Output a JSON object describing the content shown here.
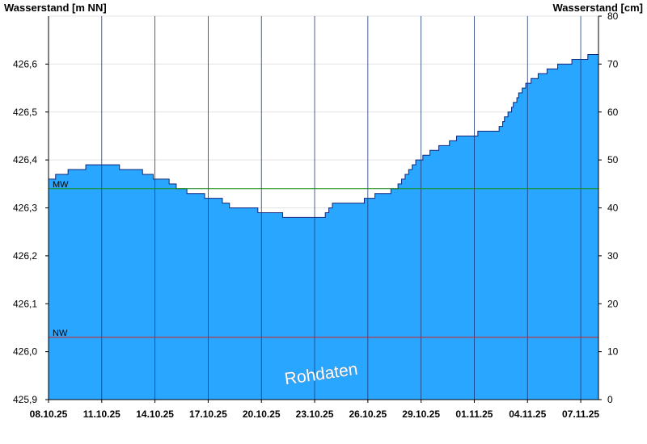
{
  "chart_data": {
    "type": "area",
    "title": "",
    "ylabel_left": "Wasserstand [m NN]",
    "ylabel_right": "Wasserstand [cm]",
    "ylim_left": [
      425.9,
      426.7
    ],
    "ylim_right": [
      0,
      80
    ],
    "yticks_left": [
      {
        "value": 425.9,
        "label": "425,9"
      },
      {
        "value": 426.0,
        "label": "426,0"
      },
      {
        "value": 426.1,
        "label": "426,1"
      },
      {
        "value": 426.2,
        "label": "426,2"
      },
      {
        "value": 426.3,
        "label": "426,3"
      },
      {
        "value": 426.4,
        "label": "426,4"
      },
      {
        "value": 426.5,
        "label": "426,5"
      },
      {
        "value": 426.6,
        "label": "426,6"
      }
    ],
    "yticks_right": [
      {
        "value": 0,
        "label": "0"
      },
      {
        "value": 10,
        "label": "10"
      },
      {
        "value": 20,
        "label": "20"
      },
      {
        "value": 30,
        "label": "30"
      },
      {
        "value": 40,
        "label": "40"
      },
      {
        "value": 50,
        "label": "50"
      },
      {
        "value": 60,
        "label": "60"
      },
      {
        "value": 70,
        "label": "70"
      },
      {
        "value": 80,
        "label": "80"
      }
    ],
    "x_range_days": [
      0,
      31
    ],
    "xticks": [
      {
        "day": 0,
        "label": "08.10.25"
      },
      {
        "day": 3,
        "label": "11.10.25"
      },
      {
        "day": 6,
        "label": "14.10.25"
      },
      {
        "day": 9,
        "label": "17.10.25"
      },
      {
        "day": 12,
        "label": "20.10.25"
      },
      {
        "day": 15,
        "label": "23.10.25"
      },
      {
        "day": 18,
        "label": "26.10.25"
      },
      {
        "day": 21,
        "label": "29.10.25"
      },
      {
        "day": 24,
        "label": "01.11.25"
      },
      {
        "day": 27,
        "label": "04.11.25"
      },
      {
        "day": 30,
        "label": "07.11.25"
      }
    ],
    "series": [
      {
        "name": "",
        "color": "#29a6ff",
        "points": [
          [
            0,
            426.36
          ],
          [
            0.4,
            426.37
          ],
          [
            1.1,
            426.38
          ],
          [
            2.1,
            426.39
          ],
          [
            4.0,
            426.38
          ],
          [
            5.3,
            426.37
          ],
          [
            5.9,
            426.36
          ],
          [
            6.8,
            426.35
          ],
          [
            7.2,
            426.34
          ],
          [
            7.8,
            426.33
          ],
          [
            8.8,
            426.32
          ],
          [
            9.8,
            426.31
          ],
          [
            10.2,
            426.3
          ],
          [
            11.8,
            426.29
          ],
          [
            13.2,
            426.28
          ],
          [
            15.6,
            426.29
          ],
          [
            15.8,
            426.3
          ],
          [
            16.0,
            426.31
          ],
          [
            17.8,
            426.32
          ],
          [
            18.4,
            426.33
          ],
          [
            19.3,
            426.34
          ],
          [
            19.7,
            426.35
          ],
          [
            19.9,
            426.36
          ],
          [
            20.1,
            426.37
          ],
          [
            20.3,
            426.38
          ],
          [
            20.5,
            426.39
          ],
          [
            20.7,
            426.4
          ],
          [
            21.1,
            426.41
          ],
          [
            21.5,
            426.42
          ],
          [
            22.0,
            426.43
          ],
          [
            22.6,
            426.44
          ],
          [
            23.0,
            426.45
          ],
          [
            24.2,
            426.46
          ],
          [
            25.4,
            426.47
          ],
          [
            25.6,
            426.48
          ],
          [
            25.7,
            426.49
          ],
          [
            25.9,
            426.5
          ],
          [
            26.1,
            426.51
          ],
          [
            26.2,
            426.52
          ],
          [
            26.4,
            426.53
          ],
          [
            26.5,
            426.54
          ],
          [
            26.7,
            426.55
          ],
          [
            26.9,
            426.56
          ],
          [
            27.2,
            426.57
          ],
          [
            27.6,
            426.58
          ],
          [
            28.1,
            426.59
          ],
          [
            28.7,
            426.6
          ],
          [
            29.5,
            426.61
          ],
          [
            30.4,
            426.62
          ],
          [
            31.0,
            426.62
          ]
        ]
      }
    ],
    "reference_lines": [
      {
        "label": "MW",
        "value": 426.34,
        "color": "#1a8a1a"
      },
      {
        "label": "NW",
        "value": 426.03,
        "color": "#d42020"
      }
    ],
    "vertical_gridlines": true,
    "watermark": "Rohdaten"
  }
}
